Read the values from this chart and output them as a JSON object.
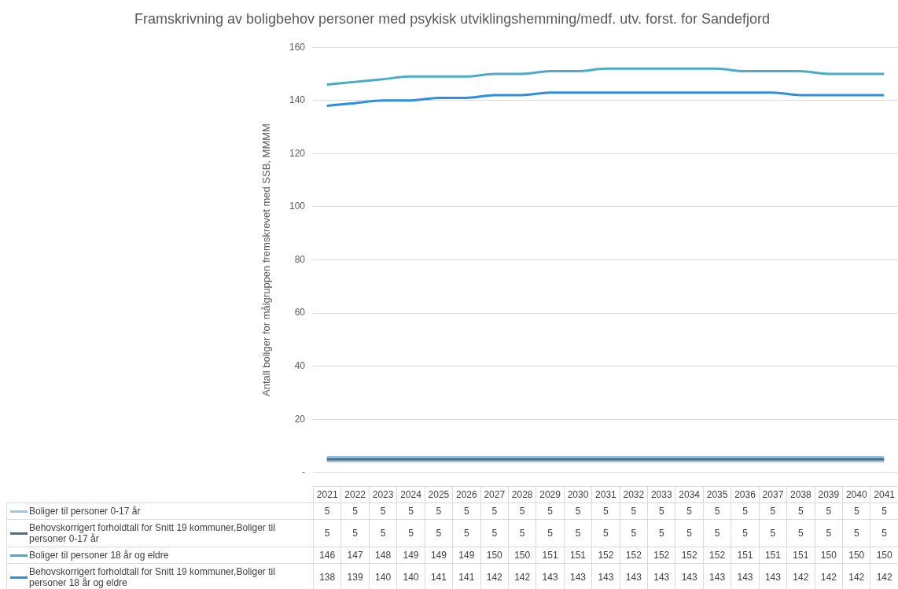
{
  "chart_data": {
    "type": "line",
    "title": "Framskrivning av boligbehov personer med psykisk utviklingshemming/medf. utv. forst. for Sandefjord",
    "ylabel": "Antall boliger for målgruppen fremskrevet med SSB, MMMM",
    "categories": [
      "2021",
      "2022",
      "2023",
      "2024",
      "2025",
      "2026",
      "2027",
      "2028",
      "2029",
      "2030",
      "2031",
      "2032",
      "2033",
      "2034",
      "2035",
      "2036",
      "2037",
      "2038",
      "2039",
      "2040",
      "2041"
    ],
    "series": [
      {
        "name": "Boliger til personer 0-17 år",
        "color": "#9dc3e6",
        "values": [
          5,
          5,
          5,
          5,
          5,
          5,
          5,
          5,
          5,
          5,
          5,
          5,
          5,
          5,
          5,
          5,
          5,
          5,
          5,
          5,
          5
        ]
      },
      {
        "name": "Behovskorrigert forholdtall for Snitt 19 kommuner,Boliger til personer 0-17 år",
        "color": "#4f7180",
        "values": [
          5,
          5,
          5,
          5,
          5,
          5,
          5,
          5,
          5,
          5,
          5,
          5,
          5,
          5,
          5,
          5,
          5,
          5,
          5,
          5,
          5
        ]
      },
      {
        "name": "Boliger til personer 18 år og eldre",
        "color": "#4bacc6",
        "values": [
          146,
          147,
          148,
          149,
          149,
          149,
          150,
          150,
          151,
          151,
          152,
          152,
          152,
          152,
          152,
          151,
          151,
          151,
          150,
          150,
          150
        ]
      },
      {
        "name": "Behovskorrigert forholdtall for Snitt 19 kommuner,Boliger til personer 18 år og eldre",
        "color": "#2e8fe0",
        "values": [
          138,
          139,
          140,
          140,
          141,
          141,
          142,
          142,
          143,
          143,
          143,
          143,
          143,
          143,
          143,
          143,
          143,
          142,
          142,
          142,
          142
        ]
      }
    ],
    "ylim": [
      0,
      160
    ],
    "yticks": [
      {
        "value": 0,
        "label": "-"
      },
      20,
      40,
      60,
      80,
      100,
      120,
      140,
      160
    ],
    "grid": "y",
    "legend": "bottom",
    "data_labels": true
  }
}
